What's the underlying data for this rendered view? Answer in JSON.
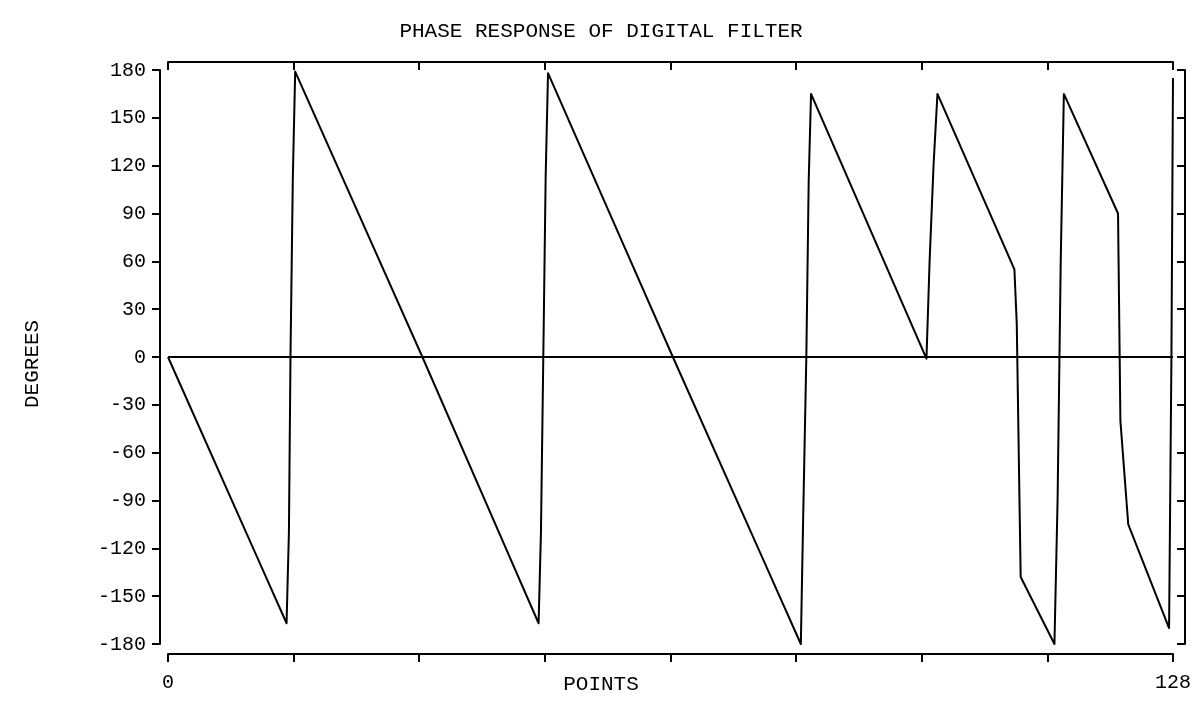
{
  "chart_data": {
    "type": "line",
    "title": "PHASE RESPONSE OF DIGITAL FILTER",
    "xlabel": "POINTS",
    "ylabel": "DEGREES",
    "x": [
      0,
      15.1,
      15.4,
      15.6,
      15.9,
      16.2,
      32.4,
      47.2,
      47.5,
      47.8,
      48.1,
      48.4,
      64.3,
      80.6,
      80.9,
      81.3,
      81.6,
      81.9,
      96.6,
      97.0,
      97.5,
      98.0,
      107.8,
      108.1,
      108.6,
      112.9,
      113.3,
      113.7,
      114.1,
      121.0,
      121.3,
      122.3,
      127.5,
      127.8,
      128
    ],
    "values": [
      0,
      -167,
      -110,
      0,
      113,
      179,
      0,
      -167,
      -110,
      0,
      113,
      178,
      0,
      -180,
      -100,
      0,
      110,
      165,
      -1,
      60,
      120,
      165,
      55,
      21,
      -138,
      -180,
      -90,
      60,
      165,
      90,
      -40,
      -105,
      -170,
      0,
      175
    ],
    "color": "#000000",
    "xlim": [
      0,
      128
    ],
    "xticks": [
      0,
      {
        "value": 16,
        "label": null
      },
      {
        "value": 32,
        "label": null
      },
      {
        "value": 48,
        "label": null
      },
      {
        "value": 64,
        "label": null
      },
      {
        "value": 80,
        "label": null
      },
      {
        "value": 96,
        "label": null
      },
      {
        "value": 112,
        "label": null
      },
      128
    ],
    "ylim": [
      -180,
      180
    ],
    "yticks": [
      -180,
      -150,
      -120,
      -90,
      -60,
      -30,
      0,
      30,
      60,
      90,
      120,
      150,
      180
    ],
    "ref_lines": [
      {
        "axis": "y",
        "value": 0,
        "color": "#000000"
      }
    ],
    "grid": false,
    "marker": "none",
    "line_style": "solid"
  }
}
